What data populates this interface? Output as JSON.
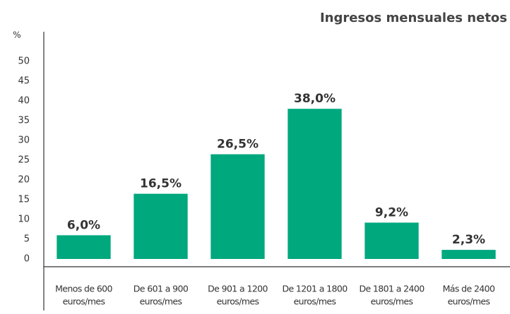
{
  "chart_data": {
    "type": "bar",
    "title": "Ingresos mensuales netos",
    "y_label": "%",
    "categories": [
      [
        "Menos de 600",
        "euros/mes"
      ],
      [
        "De 601 a 900",
        "euros/mes"
      ],
      [
        "De 901 a 1200",
        "euros/mes"
      ],
      [
        "De 1201 a 1800",
        "euros/mes"
      ],
      [
        "De 1801 a 2400",
        "euros/mes"
      ],
      [
        "Más de 2400",
        "euros/mes"
      ]
    ],
    "values": [
      6.0,
      16.5,
      26.5,
      38.0,
      9.2,
      2.3
    ],
    "value_labels": [
      "6,0%",
      "16,5%",
      "26,5%",
      "38,0%",
      "9,2%",
      "2,3%"
    ],
    "color": "#00a87e",
    "ylim": [
      0,
      57.5
    ],
    "yticks": [
      0,
      5,
      10,
      15,
      20,
      25,
      30,
      35,
      40,
      45,
      50
    ],
    "grid": false
  }
}
